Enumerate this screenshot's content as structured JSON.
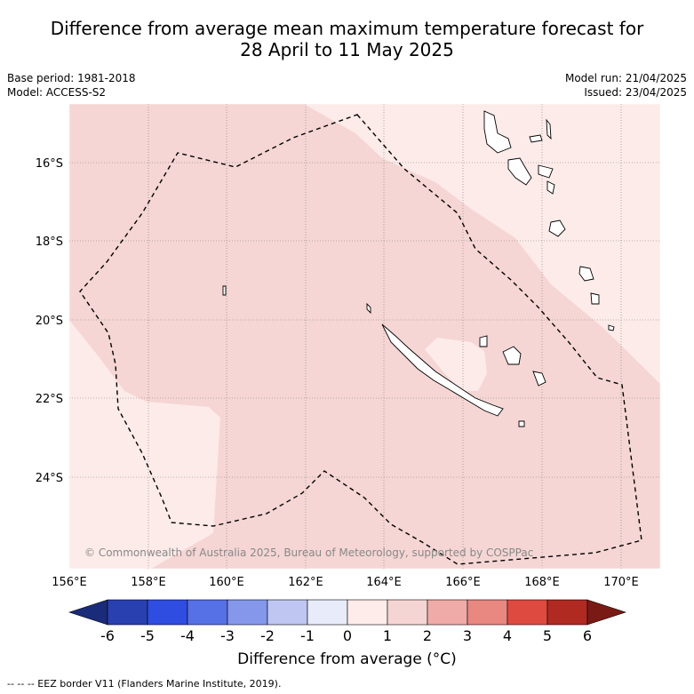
{
  "title_line1": "Difference from average mean maximum temperature forecast for",
  "title_line2": "28 April to 11 May 2025",
  "meta_left": [
    "Base period: 1981-2018",
    "Model: ACCESS-S2"
  ],
  "meta_right": [
    "Model run: 21/04/2025",
    "Issued: 23/04/2025"
  ],
  "lon_labels": [
    "156°E",
    "158°E",
    "160°E",
    "162°E",
    "164°E",
    "166°E",
    "168°E",
    "170°E"
  ],
  "lat_labels": [
    "16°S",
    "18°S",
    "20°S",
    "22°S",
    "24°S"
  ],
  "copyright": "© Commonwealth of Australia 2025, Bureau of Meteorology, supported by COSPPac",
  "colorbar": {
    "ticks": [
      "-6",
      "-5",
      "-4",
      "-3",
      "-2",
      "-1",
      "0",
      "1",
      "2",
      "3",
      "4",
      "5",
      "6"
    ],
    "colors": [
      "#1a2b7a",
      "#2840b0",
      "#2f4de0",
      "#5670e6",
      "#8497ea",
      "#bfc6f2",
      "#e8ecfa",
      "#fdecea",
      "#f5d5d3",
      "#efaba7",
      "#e88880",
      "#df4a40",
      "#b02a22",
      "#7a1a14"
    ],
    "label": "Difference from average (°C)"
  },
  "map_colors": {
    "light": "#fcebe9",
    "medium": "#f5d6d4"
  },
  "footer": "--  --  -- EEZ border V11 (Flanders Marine Institute, 2019)."
}
